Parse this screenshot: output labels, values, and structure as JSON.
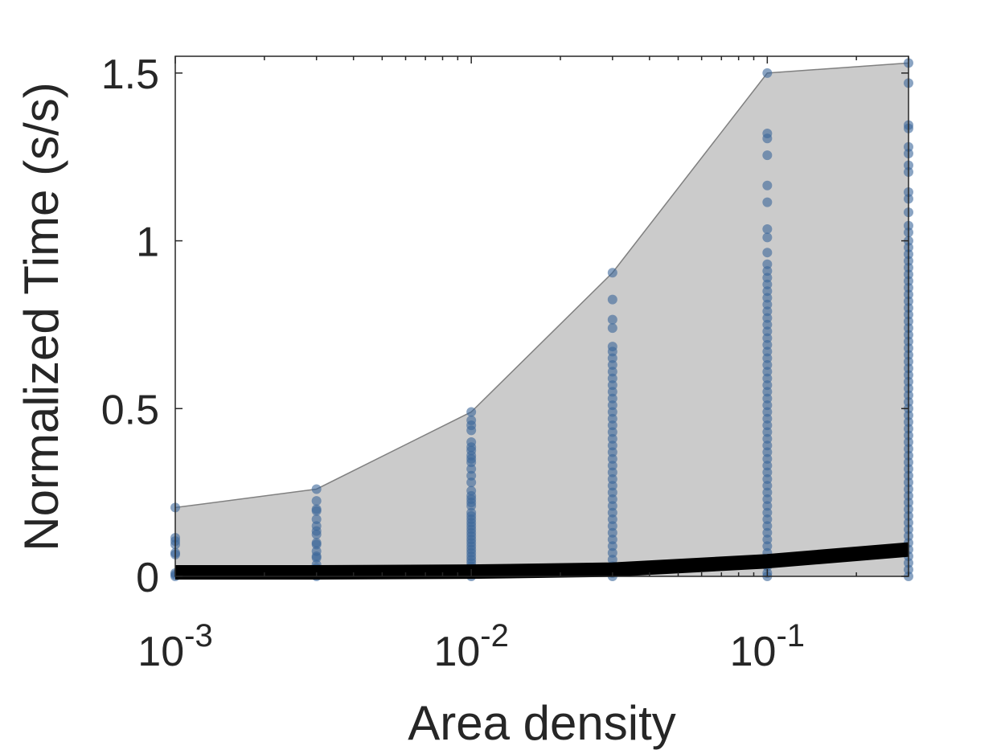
{
  "chart_data": {
    "type": "scatter",
    "title": "",
    "xlabel": "Area density",
    "ylabel": "Normalized Time (s/s)",
    "x_scale": "log",
    "xlim": [
      0.001,
      0.3
    ],
    "ylim": [
      0,
      1.55
    ],
    "x_ticks": [
      {
        "value": 0.001,
        "base": "10",
        "exp": "-3"
      },
      {
        "value": 0.01,
        "base": "10",
        "exp": "-2"
      },
      {
        "value": 0.1,
        "base": "10",
        "exp": "-1"
      }
    ],
    "y_ticks": [
      {
        "value": 0,
        "label": "0"
      },
      {
        "value": 0.5,
        "label": "0.5"
      },
      {
        "value": 1,
        "label": "1"
      },
      {
        "value": 1.5,
        "label": "1.5"
      }
    ],
    "grid": false,
    "colors": {
      "band_fill": "#cbcbcb",
      "band_edge": "#808080",
      "points": "#3a6699",
      "mean_line": "#000000",
      "axes": "#262626"
    },
    "band_upper": {
      "x": [
        0.001,
        0.003,
        0.01,
        0.03,
        0.1,
        0.3
      ],
      "y": [
        0.205,
        0.26,
        0.49,
        0.905,
        1.5,
        1.53
      ]
    },
    "band_lower": {
      "x": [
        0.001,
        0.003,
        0.01,
        0.03,
        0.1,
        0.3
      ],
      "y": [
        0,
        0,
        0,
        0,
        0,
        0
      ]
    },
    "mean_line": {
      "x": [
        0.001,
        0.003,
        0.01,
        0.03,
        0.1,
        0.3
      ],
      "y": [
        0.012,
        0.012,
        0.014,
        0.02,
        0.045,
        0.08
      ]
    },
    "scatter_groups": [
      {
        "x": 0.001,
        "y": [
          0.205,
          0.115,
          0.105,
          0.095,
          0.07,
          0.065,
          0.01,
          0.005,
          0.0
        ]
      },
      {
        "x": 0.003,
        "y": [
          0.26,
          0.225,
          0.2,
          0.195,
          0.17,
          0.15,
          0.135,
          0.125,
          0.1,
          0.095,
          0.075,
          0.06,
          0.055,
          0.035,
          0.025,
          0.015,
          0.005,
          0.0
        ]
      },
      {
        "x": 0.01,
        "y": [
          0.49,
          0.465,
          0.45,
          0.435,
          0.4,
          0.385,
          0.375,
          0.36,
          0.35,
          0.34,
          0.32,
          0.3,
          0.28,
          0.255,
          0.24,
          0.23,
          0.22,
          0.21,
          0.19,
          0.18,
          0.17,
          0.16,
          0.15,
          0.14,
          0.13,
          0.12,
          0.11,
          0.1,
          0.09,
          0.08,
          0.07,
          0.06,
          0.05,
          0.04,
          0.03,
          0.02,
          0.01,
          0.0
        ]
      },
      {
        "x": 0.03,
        "y": [
          0.905,
          0.825,
          0.765,
          0.74,
          0.685,
          0.67,
          0.65,
          0.63,
          0.61,
          0.59,
          0.57,
          0.55,
          0.53,
          0.51,
          0.49,
          0.47,
          0.45,
          0.43,
          0.41,
          0.39,
          0.37,
          0.35,
          0.33,
          0.31,
          0.29,
          0.27,
          0.25,
          0.23,
          0.21,
          0.19,
          0.17,
          0.15,
          0.13,
          0.11,
          0.09,
          0.07,
          0.05,
          0.03,
          0.01,
          0.0
        ]
      },
      {
        "x": 0.1,
        "y": [
          1.5,
          1.32,
          1.305,
          1.255,
          1.165,
          1.115,
          1.035,
          1.01,
          0.965,
          0.93,
          0.91,
          0.89,
          0.87,
          0.85,
          0.83,
          0.81,
          0.79,
          0.77,
          0.75,
          0.73,
          0.71,
          0.69,
          0.67,
          0.65,
          0.63,
          0.61,
          0.59,
          0.57,
          0.55,
          0.53,
          0.51,
          0.49,
          0.47,
          0.45,
          0.43,
          0.41,
          0.39,
          0.37,
          0.35,
          0.33,
          0.31,
          0.29,
          0.27,
          0.25,
          0.23,
          0.21,
          0.19,
          0.17,
          0.15,
          0.13,
          0.11,
          0.09,
          0.07,
          0.05,
          0.03,
          0.01,
          0.0
        ]
      },
      {
        "x": 0.3,
        "y": [
          1.53,
          1.47,
          1.345,
          1.335,
          1.28,
          1.26,
          1.225,
          1.205,
          1.145,
          1.125,
          1.085,
          1.045,
          1.025,
          1.0,
          0.98,
          0.96,
          0.94,
          0.92,
          0.9,
          0.88,
          0.86,
          0.84,
          0.82,
          0.8,
          0.78,
          0.76,
          0.74,
          0.72,
          0.7,
          0.68,
          0.66,
          0.64,
          0.62,
          0.6,
          0.58,
          0.56,
          0.54,
          0.52,
          0.5,
          0.48,
          0.46,
          0.44,
          0.42,
          0.4,
          0.38,
          0.36,
          0.34,
          0.32,
          0.3,
          0.28,
          0.26,
          0.24,
          0.22,
          0.2,
          0.18,
          0.16,
          0.14,
          0.12,
          0.1,
          0.08,
          0.06,
          0.04,
          0.02,
          0.0
        ]
      }
    ]
  }
}
